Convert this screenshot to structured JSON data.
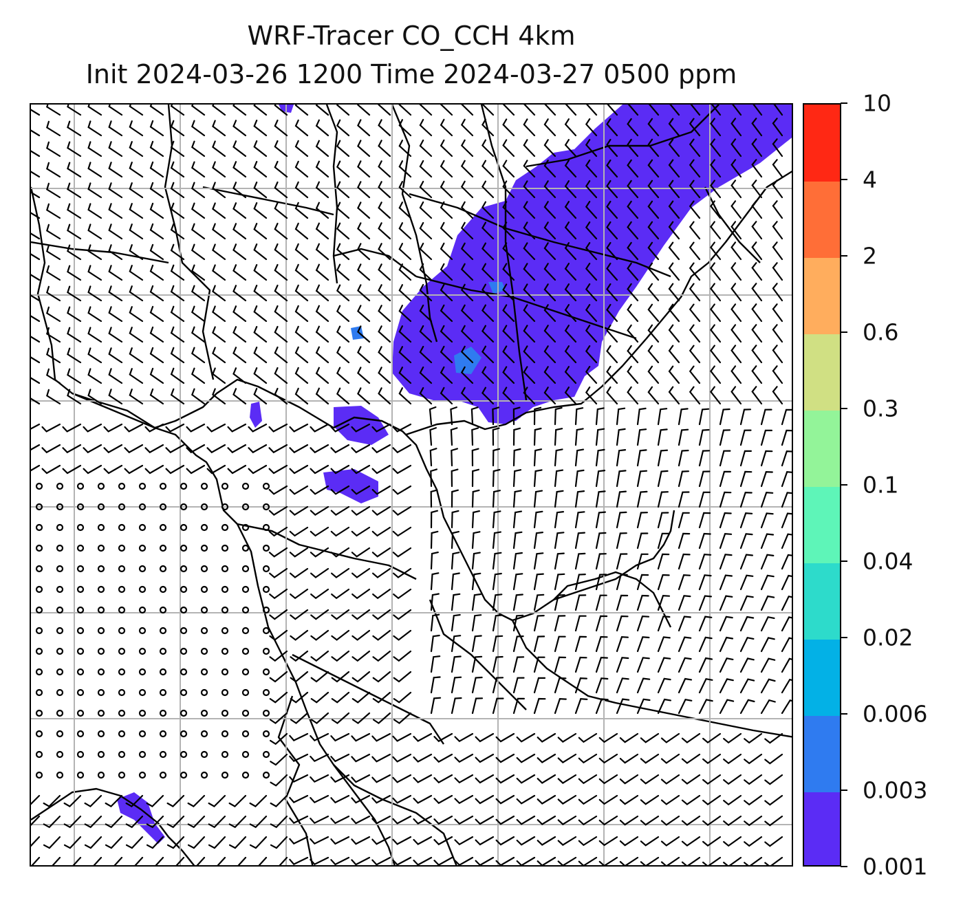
{
  "title": {
    "line1": "WRF-Tracer CO_CCH 4km",
    "line2": "Init 2024-03-26 1200 Time 2024-03-27 0500 ppm"
  },
  "colorbar": {
    "levels": [
      "0.001",
      "0.003",
      "0.006",
      "0.02",
      "0.04",
      "0.1",
      "0.3",
      "0.6",
      "2",
      "4",
      "10"
    ],
    "colors": [
      "#5b2cf5",
      "#2f7bf0",
      "#03b1e6",
      "#2ddbcb",
      "#5ef5b8",
      "#93f499",
      "#d0e083",
      "#ffad5d",
      "#ff6e37",
      "#ff2814"
    ]
  },
  "map": {
    "gridlines": true,
    "gridline_color": "#b3b3b3",
    "contour_colors": {
      "low": "#5b2cf5",
      "mid": "#2f7bf0"
    },
    "wind_barbs": true
  }
}
